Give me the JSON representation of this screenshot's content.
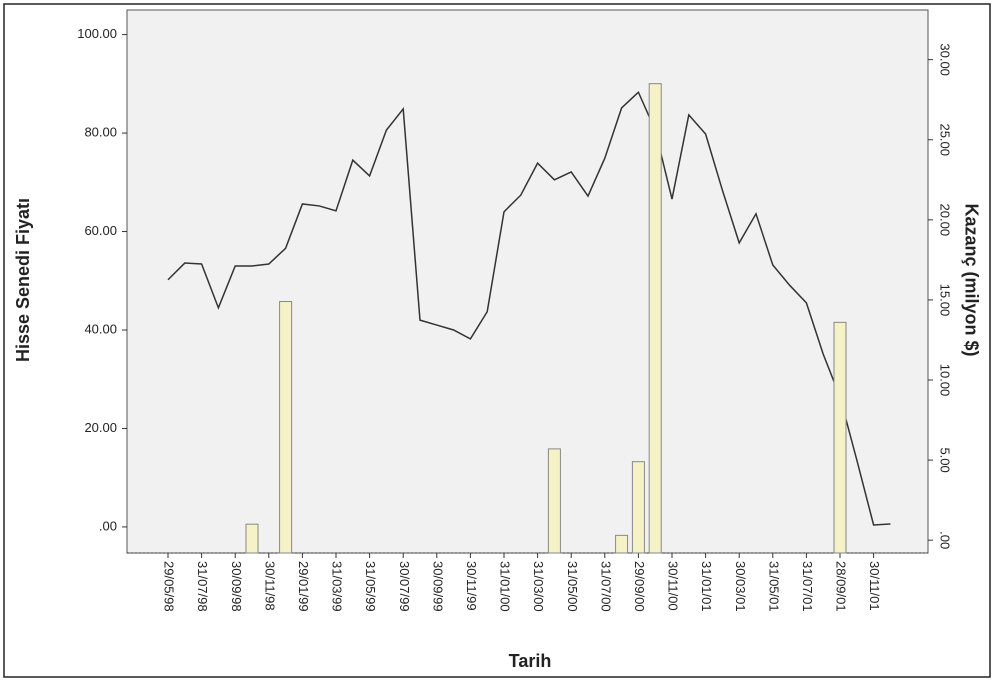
{
  "chart_data": {
    "type": "combo",
    "x_label": "Tarih",
    "y_label": "Hisse Senedi Fiyatı",
    "y2_label": "Kazanç (milyon $)",
    "categories": [
      "29/05/98",
      null,
      "31/07/98",
      null,
      "30/09/98",
      null,
      "30/11/98",
      null,
      "29/01/99",
      null,
      "31/03/99",
      null,
      "31/05/99",
      null,
      "30/07/99",
      null,
      "30/09/99",
      null,
      "30/11/99",
      null,
      "31/01/00",
      null,
      "31/03/00",
      null,
      "31/05/00",
      null,
      "31/07/00",
      null,
      "29/09/00",
      null,
      "30/11/00",
      null,
      "31/01/01",
      null,
      "30/03/01",
      null,
      "31/05/01",
      null,
      "31/07/01",
      null,
      "28/09/01",
      null,
      "30/11/01",
      null
    ],
    "series": [
      {
        "type": "line",
        "color": "#333333",
        "values": [
          50.2,
          53.6,
          53.4,
          44.5,
          53.0,
          53.0,
          53.4,
          56.6,
          65.6,
          65.2,
          64.2,
          74.5,
          71.3,
          80.6,
          84.9,
          42.0,
          41.0,
          40.0,
          38.2,
          43.7,
          64.0,
          67.4,
          73.9,
          70.5,
          72.1,
          67.2,
          74.9,
          85.1,
          88.3,
          80.6,
          66.6,
          83.7,
          79.8,
          68.4,
          57.7,
          63.6,
          53.2,
          49.1,
          45.5,
          35.1,
          26.4,
          13.6,
          0.4,
          0.6
        ]
      },
      {
        "type": "bar",
        "axis": "y2",
        "color": "#f5f2c8",
        "values": [
          null,
          null,
          null,
          null,
          null,
          1.0,
          null,
          14.9,
          null,
          null,
          null,
          null,
          null,
          null,
          null,
          null,
          null,
          null,
          null,
          null,
          null,
          null,
          null,
          5.7,
          null,
          null,
          null,
          0.3,
          4.9,
          28.5,
          null,
          null,
          null,
          null,
          null,
          null,
          null,
          null,
          null,
          null,
          13.6,
          null,
          null,
          null
        ]
      }
    ],
    "ylim": [
      -5.3,
      105
    ],
    "yticks": [
      {
        "value": 0,
        "label": ".00"
      },
      {
        "value": 20,
        "label": "20.00"
      },
      {
        "value": 40,
        "label": "40.00"
      },
      {
        "value": 60,
        "label": "60.00"
      },
      {
        "value": 80,
        "label": "80.00"
      },
      {
        "value": 100,
        "label": "100.00"
      }
    ],
    "y2lim": [
      -0.8,
      33.1
    ],
    "y2ticks": [
      {
        "value": 0,
        "label": ".00"
      },
      {
        "value": 5,
        "label": "5.00"
      },
      {
        "value": 10,
        "label": "10.00"
      },
      {
        "value": 15,
        "label": "15.00"
      },
      {
        "value": 20,
        "label": "20.00"
      },
      {
        "value": 25,
        "label": "25.00"
      },
      {
        "value": 30,
        "label": "30.00"
      }
    ]
  }
}
